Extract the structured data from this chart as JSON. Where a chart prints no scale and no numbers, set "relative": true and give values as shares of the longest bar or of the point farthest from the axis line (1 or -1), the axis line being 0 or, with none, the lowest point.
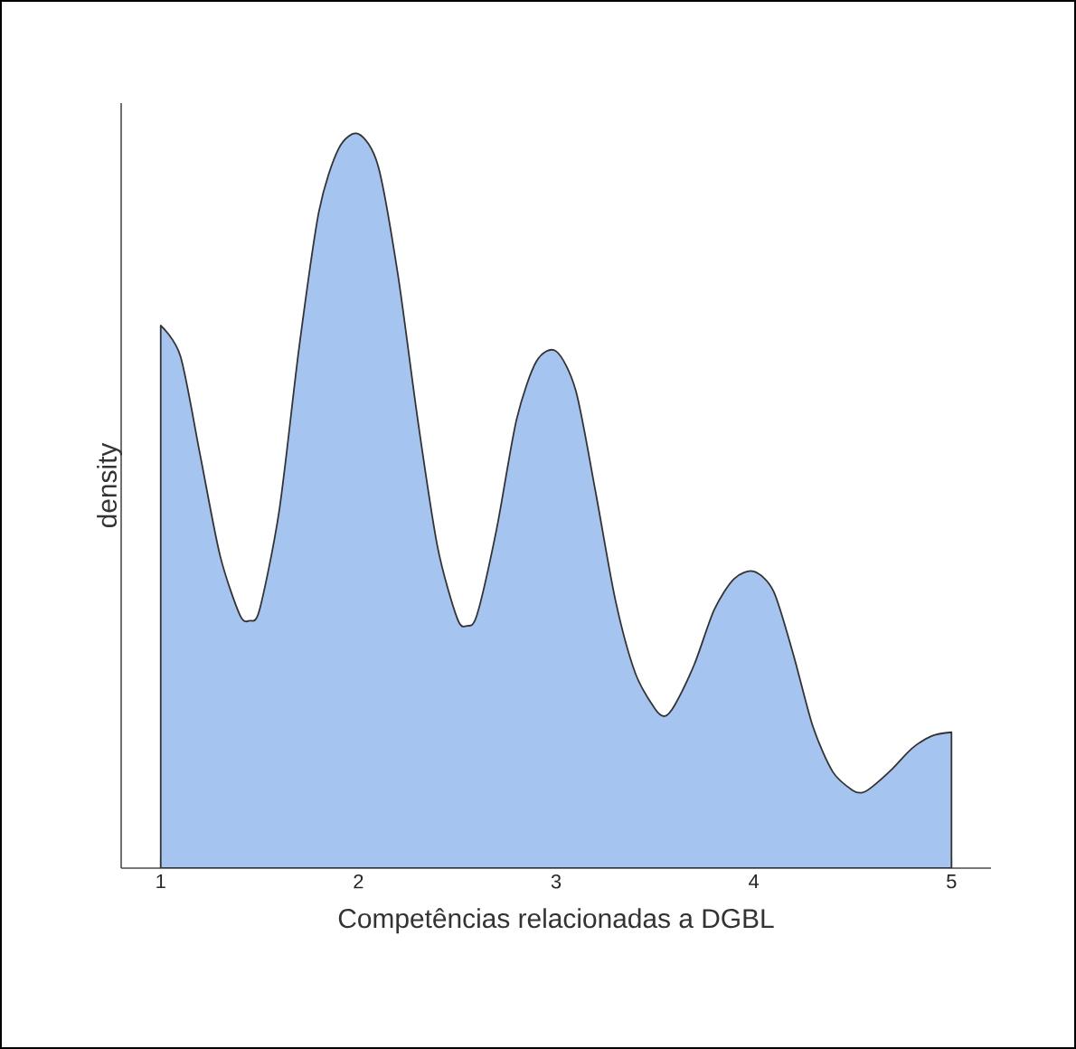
{
  "chart_data": {
    "type": "area",
    "xlabel": "Competências relacionadas a DGBL",
    "ylabel": "density",
    "relative": true,
    "color": "#a6c4f0",
    "x": [
      1.0,
      1.1,
      1.2,
      1.3,
      1.4,
      1.45,
      1.5,
      1.6,
      1.7,
      1.8,
      1.9,
      2.0,
      2.1,
      2.2,
      2.3,
      2.4,
      2.5,
      2.55,
      2.6,
      2.7,
      2.8,
      2.9,
      3.0,
      3.1,
      3.2,
      3.3,
      3.4,
      3.5,
      3.55,
      3.6,
      3.7,
      3.8,
      3.9,
      4.0,
      4.1,
      4.2,
      4.3,
      4.4,
      4.5,
      4.55,
      4.6,
      4.7,
      4.8,
      4.9,
      5.0
    ],
    "values": [
      0.739,
      0.697,
      0.562,
      0.426,
      0.345,
      0.337,
      0.352,
      0.488,
      0.709,
      0.894,
      0.98,
      1.0,
      0.956,
      0.808,
      0.611,
      0.438,
      0.34,
      0.33,
      0.345,
      0.463,
      0.611,
      0.69,
      0.704,
      0.65,
      0.512,
      0.365,
      0.266,
      0.217,
      0.207,
      0.222,
      0.278,
      0.352,
      0.394,
      0.404,
      0.377,
      0.291,
      0.192,
      0.131,
      0.106,
      0.103,
      0.111,
      0.135,
      0.163,
      0.18,
      0.185
    ],
    "xlim": [
      0.8,
      5.2
    ],
    "xticks": [
      1,
      2,
      3,
      4,
      5
    ]
  }
}
